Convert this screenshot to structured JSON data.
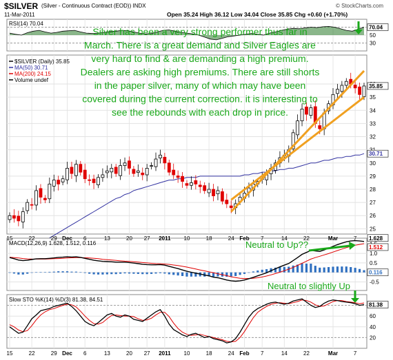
{
  "header": {
    "symbol": "$SILVER",
    "description": "(Silver - Continuous Contract (EOD))  INDX",
    "date": "11-Mar-2011",
    "ohlc": "Open 35.24  High 36.12  Low 34.04  Close 35.85  Chg +0.60 (+1.70%)",
    "watermark": "© StockCharts.com"
  },
  "annotations": {
    "main_text": [
      "Silver has been a very strong performer thus far in",
      "March. There is a great demand and Silver Eagles are",
      "very hard to find & are demanding a high premium.",
      "Dealers are asking high premiums. There are still shorts",
      "in the paper silver, many of which may have been",
      "covered during the current correction. it is interesting to",
      "see the rebounds with each drop in price."
    ],
    "macd_note": "Neutral to Up??",
    "sto_note": "Neutral to slightly Up"
  },
  "colors": {
    "price_up": "#000000",
    "price_down": "#e00000",
    "ma50": "#3030a0",
    "ma200": "#e00000",
    "macd_line": "#000000",
    "signal_line": "#e00000",
    "histogram": "#3070c0",
    "sto_k": "#000000",
    "sto_d": "#e00000",
    "rsi_fill": "#2a7a2a",
    "annotation_text": "#1aa81a",
    "channel": "#f0a020",
    "arrow": "#1aa81a"
  },
  "chart_data": [
    {
      "type": "line",
      "panel": "rsi",
      "label": "RSI(14) 70.04",
      "y_ticks": [
        70,
        50,
        30
      ],
      "ylim": [
        10,
        90
      ],
      "last_value": "70.04",
      "values": [
        55,
        52,
        50,
        56,
        60,
        62,
        58,
        55,
        57,
        60,
        61,
        62,
        58,
        55,
        54,
        55,
        57,
        59,
        60,
        62,
        61,
        58,
        55,
        53,
        54,
        58,
        62,
        63,
        60,
        57,
        55,
        53,
        50,
        45,
        40,
        38,
        42,
        46,
        48,
        50,
        52,
        54,
        52,
        50,
        55,
        58,
        62,
        65,
        67,
        66,
        68,
        70,
        69,
        71,
        72,
        70,
        66,
        62,
        60,
        65,
        70
      ]
    },
    {
      "type": "candlestick",
      "panel": "price",
      "legend": [
        "$SILVER (Daily) 35.85",
        "MA(50) 30.71",
        "MA(200) 24.15",
        "Volume undef"
      ],
      "ylim": [
        24.6,
        38.2
      ],
      "y_ticks": [
        25,
        26,
        27,
        28,
        29,
        30,
        31,
        32,
        33,
        34,
        35,
        36
      ],
      "y_tick_labels": [
        "25",
        "26",
        "27",
        "28",
        "29",
        "30",
        "31",
        "32",
        "33",
        "34",
        "35",
        "36"
      ],
      "x_tick_labels": [
        "15",
        "22",
        "29",
        "Dec",
        "6",
        "13",
        "20",
        "27",
        "2011",
        "10",
        "18",
        "24",
        "Feb",
        "7",
        "14",
        "22",
        "Mar",
        "7"
      ],
      "x_tick_bars": [
        0,
        5,
        10,
        13,
        17,
        22,
        27,
        31,
        35,
        40,
        45,
        50,
        53,
        57,
        62,
        67,
        73,
        78
      ],
      "last_close": "35.85",
      "ma50_last": "30.71",
      "closes": [
        26.0,
        25.8,
        25.6,
        26.3,
        27.0,
        26.8,
        27.9,
        27.4,
        27.2,
        28.4,
        28.7,
        28.4,
        28.8,
        29.6,
        29.2,
        29.9,
        29.3,
        28.8,
        28.7,
        28.5,
        28.9,
        29.1,
        29.4,
        29.6,
        29.2,
        29.8,
        30.0,
        29.6,
        29.2,
        29.4,
        29.1,
        29.6,
        29.8,
        30.3,
        30.6,
        30.0,
        29.3,
        29.1,
        28.9,
        28.6,
        28.3,
        28.5,
        28.4,
        28.2,
        27.9,
        28.0,
        27.5,
        27.9,
        27.1,
        26.9,
        26.6,
        26.9,
        27.4,
        27.7,
        28.1,
        28.4,
        28.6,
        28.8,
        29.1,
        29.6,
        30.0,
        30.4,
        30.6,
        31.0,
        32.3,
        33.2,
        34.1,
        33.7,
        34.2,
        33.0,
        32.6,
        33.8,
        34.5,
        35.2,
        35.6,
        35.9,
        36.2,
        36.0,
        35.7,
        35.2,
        35.85
      ],
      "ma50": [
        22.6,
        22.8,
        23.0,
        23.1,
        23.3,
        23.5,
        23.7,
        23.9,
        24.1,
        24.3,
        24.5,
        24.7,
        24.9,
        25.1,
        25.3,
        25.5,
        25.7,
        25.9,
        26.1,
        26.3,
        26.5,
        26.7,
        26.9,
        27.1,
        27.3,
        27.4,
        27.6,
        27.7,
        27.9,
        28.0,
        28.1,
        28.2,
        28.3,
        28.4,
        28.5,
        28.6,
        28.7,
        28.7,
        28.8,
        28.8,
        28.9,
        28.9,
        28.9,
        29.0,
        29.0,
        29.0,
        29.0,
        29.0,
        29.0,
        29.0,
        29.0,
        29.0,
        29.0,
        29.1,
        29.1,
        29.2,
        29.2,
        29.3,
        29.3,
        29.4,
        29.4,
        29.5,
        29.5,
        29.6,
        29.6,
        29.7,
        29.8,
        29.9,
        30.0,
        30.0,
        30.1,
        30.2,
        30.2,
        30.3,
        30.4,
        30.4,
        30.5,
        30.5,
        30.6,
        30.6,
        30.71
      ],
      "channel_lines": [
        {
          "from": [
            50,
            26.3
          ],
          "to": [
            80,
            37.0
          ]
        },
        {
          "from": [
            50,
            27.2
          ],
          "to": [
            80,
            35.0
          ]
        }
      ]
    },
    {
      "type": "line",
      "panel": "macd",
      "label": "MACD(12,26,9) 1.628, 1.512, 0.116",
      "y_ticks": [
        1.5,
        1.0,
        0.5,
        0.0,
        -0.5
      ],
      "y_tick_labels": [
        "1.5",
        "1.0",
        "0.5",
        "",
        "-0.5"
      ],
      "ylim": [
        -0.95,
        1.8
      ],
      "last_values": [
        "1.628",
        "1.512",
        "0.116"
      ],
      "macd": [
        0.78,
        0.72,
        0.65,
        0.62,
        0.64,
        0.68,
        0.71,
        0.72,
        0.72,
        0.74,
        0.76,
        0.79,
        0.8,
        0.82,
        0.81,
        0.82,
        0.79,
        0.74,
        0.69,
        0.64,
        0.61,
        0.58,
        0.57,
        0.56,
        0.54,
        0.54,
        0.54,
        0.52,
        0.49,
        0.46,
        0.43,
        0.41,
        0.4,
        0.4,
        0.41,
        0.38,
        0.32,
        0.26,
        0.2,
        0.13,
        0.06,
        0.01,
        -0.04,
        -0.08,
        -0.14,
        -0.18,
        -0.25,
        -0.28,
        -0.34,
        -0.4,
        -0.44,
        -0.46,
        -0.44,
        -0.4,
        -0.33,
        -0.26,
        -0.18,
        -0.1,
        -0.02,
        0.09,
        0.19,
        0.29,
        0.38,
        0.47,
        0.62,
        0.78,
        0.95,
        1.05,
        1.16,
        1.13,
        1.1,
        1.18,
        1.27,
        1.37,
        1.46,
        1.54,
        1.61,
        1.65,
        1.67,
        1.65,
        1.628
      ],
      "signal": [
        0.8,
        0.78,
        0.76,
        0.73,
        0.71,
        0.7,
        0.7,
        0.7,
        0.7,
        0.71,
        0.72,
        0.73,
        0.74,
        0.76,
        0.77,
        0.78,
        0.78,
        0.77,
        0.76,
        0.74,
        0.72,
        0.69,
        0.67,
        0.65,
        0.63,
        0.61,
        0.59,
        0.58,
        0.56,
        0.54,
        0.52,
        0.5,
        0.48,
        0.46,
        0.45,
        0.44,
        0.42,
        0.39,
        0.36,
        0.32,
        0.28,
        0.23,
        0.18,
        0.13,
        0.08,
        0.03,
        -0.02,
        -0.07,
        -0.12,
        -0.17,
        -0.23,
        -0.27,
        -0.31,
        -0.32,
        -0.32,
        -0.31,
        -0.28,
        -0.24,
        -0.19,
        -0.13,
        -0.06,
        0.01,
        0.09,
        0.17,
        0.26,
        0.37,
        0.48,
        0.59,
        0.7,
        0.78,
        0.85,
        0.92,
        0.99,
        1.07,
        1.15,
        1.23,
        1.3,
        1.37,
        1.43,
        1.47,
        1.512
      ]
    },
    {
      "type": "line",
      "panel": "stochastic",
      "label": "Slow STO %K(14) %D(3) 81.38, 84.51",
      "y_ticks": [
        80,
        60,
        40,
        20
      ],
      "ylim": [
        0,
        100
      ],
      "last_values": [
        "81.38",
        "84.51"
      ],
      "k": [
        40,
        34,
        28,
        30,
        42,
        55,
        62,
        70,
        72,
        74,
        78,
        80,
        82,
        84,
        78,
        70,
        60,
        50,
        45,
        42,
        48,
        55,
        62,
        65,
        60,
        58,
        62,
        60,
        54,
        52,
        50,
        56,
        62,
        68,
        72,
        60,
        45,
        35,
        30,
        25,
        22,
        26,
        28,
        24,
        20,
        22,
        18,
        16,
        14,
        10,
        12,
        18,
        30,
        44,
        58,
        68,
        74,
        78,
        82,
        85,
        86,
        84,
        82,
        84,
        88,
        90,
        92,
        86,
        80,
        76,
        78,
        84,
        88,
        90,
        89,
        87,
        86,
        85,
        83,
        80,
        81.38
      ],
      "d": [
        44,
        40,
        34,
        31,
        33,
        42,
        53,
        62,
        68,
        72,
        74,
        77,
        80,
        82,
        81,
        77,
        69,
        60,
        52,
        46,
        45,
        48,
        55,
        61,
        62,
        61,
        60,
        60,
        59,
        55,
        52,
        53,
        56,
        62,
        67,
        67,
        59,
        47,
        37,
        30,
        26,
        24,
        25,
        26,
        24,
        22,
        20,
        18,
        16,
        13,
        12,
        13,
        20,
        31,
        44,
        57,
        67,
        73,
        78,
        82,
        84,
        85,
        84,
        83,
        85,
        87,
        90,
        89,
        86,
        81,
        78,
        79,
        83,
        87,
        89,
        89,
        87,
        86,
        85,
        83,
        84.51
      ]
    }
  ]
}
